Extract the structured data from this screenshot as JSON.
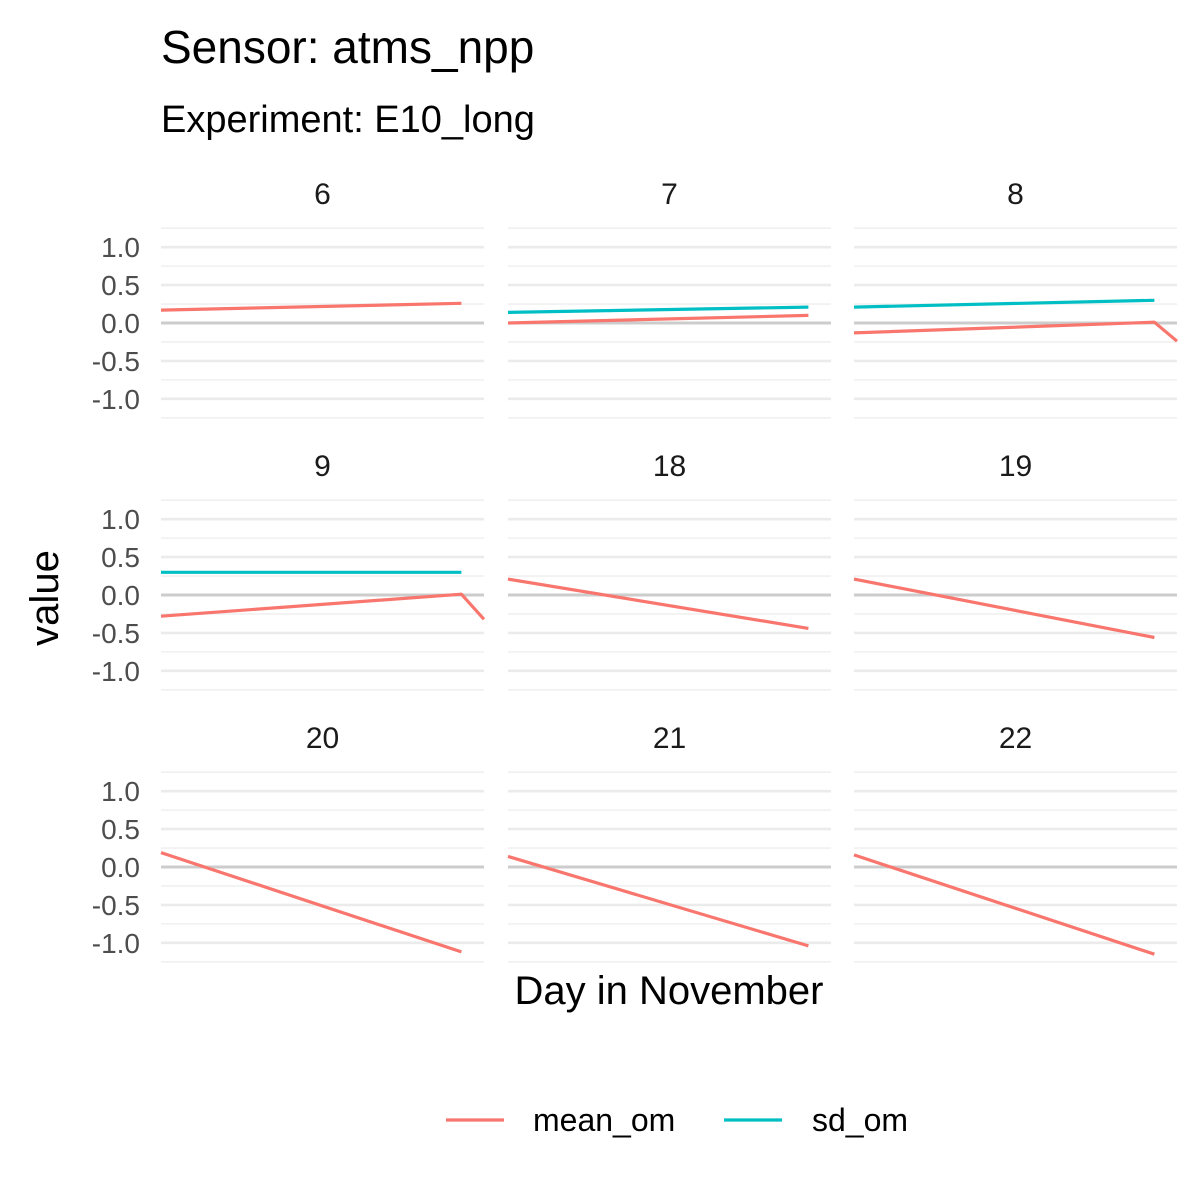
{
  "chart_data": {
    "type": "line",
    "title": "Sensor: atms_npp",
    "subtitle": "Experiment: E10_long",
    "xlabel": "Day in November",
    "ylabel": "value",
    "ylim": [
      -1.2,
      1.2
    ],
    "yticks": [
      "1.0",
      "0.5",
      "0.0",
      "-0.5",
      "-1.0"
    ],
    "ytick_values": [
      1.0,
      0.5,
      0.0,
      -0.5,
      -1.0
    ],
    "grid": true,
    "legend": "bottom",
    "colors": {
      "mean_om": "#F8766D",
      "sd_om": "#00BFC4"
    },
    "series_names": [
      "mean_om",
      "sd_om"
    ],
    "facets": [
      {
        "label": "6",
        "series": [
          {
            "name": "mean_om",
            "points": [
              [
                0,
                0.17
              ],
              [
                0.93,
                0.26
              ]
            ]
          }
        ]
      },
      {
        "label": "7",
        "series": [
          {
            "name": "mean_om",
            "points": [
              [
                0,
                0.0
              ],
              [
                0.93,
                0.1
              ]
            ]
          },
          {
            "name": "sd_om",
            "points": [
              [
                0,
                0.14
              ],
              [
                0.93,
                0.21
              ]
            ]
          }
        ]
      },
      {
        "label": "8",
        "series": [
          {
            "name": "mean_om",
            "points": [
              [
                0,
                -0.13
              ],
              [
                0.93,
                0.01
              ],
              [
                1.0,
                -0.24
              ]
            ]
          },
          {
            "name": "sd_om",
            "points": [
              [
                0,
                0.21
              ],
              [
                0.93,
                0.3
              ]
            ]
          }
        ]
      },
      {
        "label": "9",
        "series": [
          {
            "name": "mean_om",
            "points": [
              [
                0,
                -0.28
              ],
              [
                0.93,
                0.01
              ],
              [
                1.0,
                -0.32
              ]
            ]
          },
          {
            "name": "sd_om",
            "points": [
              [
                0,
                0.3
              ],
              [
                0.93,
                0.3
              ]
            ]
          }
        ]
      },
      {
        "label": "18",
        "series": [
          {
            "name": "mean_om",
            "points": [
              [
                0,
                0.21
              ],
              [
                0.93,
                -0.44
              ]
            ]
          }
        ]
      },
      {
        "label": "19",
        "series": [
          {
            "name": "mean_om",
            "points": [
              [
                0,
                0.21
              ],
              [
                0.93,
                -0.56
              ]
            ]
          }
        ]
      },
      {
        "label": "20",
        "series": [
          {
            "name": "mean_om",
            "points": [
              [
                0,
                0.19
              ],
              [
                0.93,
                -1.12
              ]
            ]
          }
        ]
      },
      {
        "label": "21",
        "series": [
          {
            "name": "mean_om",
            "points": [
              [
                0,
                0.14
              ],
              [
                0.93,
                -1.04
              ]
            ]
          }
        ]
      },
      {
        "label": "22",
        "series": [
          {
            "name": "mean_om",
            "points": [
              [
                0,
                0.16
              ],
              [
                0.93,
                -1.15
              ]
            ]
          }
        ]
      }
    ]
  }
}
